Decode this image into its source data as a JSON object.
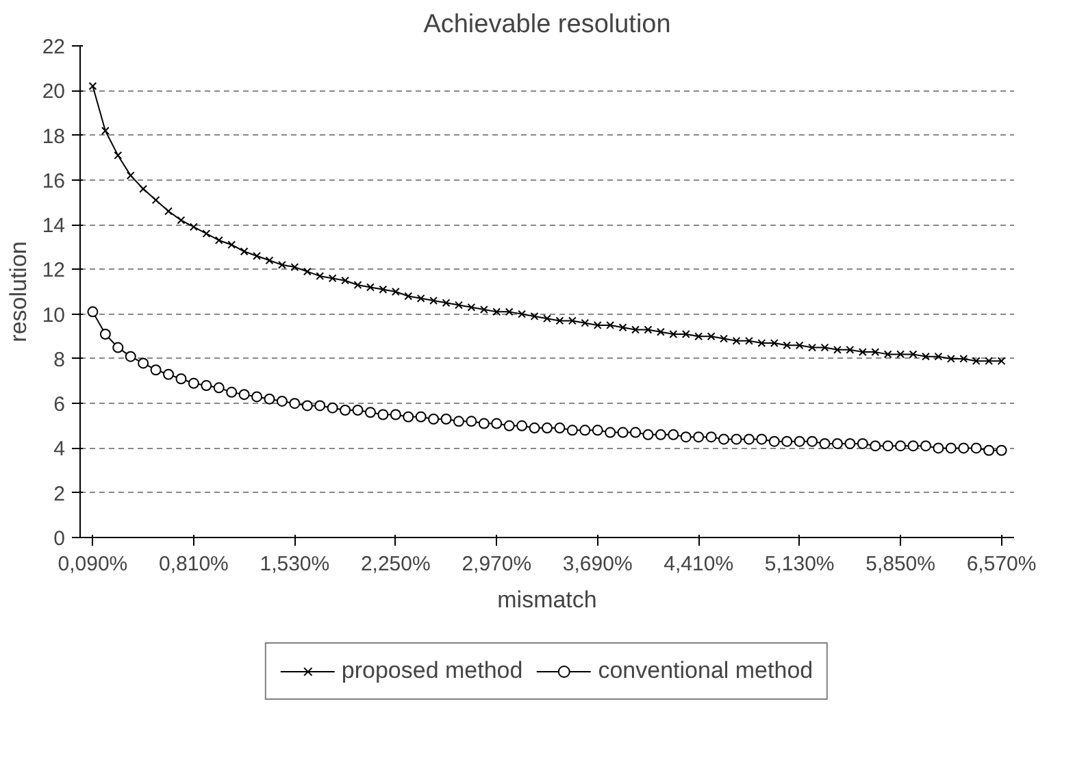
{
  "chart_data": {
    "type": "line",
    "title": "Achievable resolution",
    "xlabel": "mismatch",
    "ylabel": "resolution",
    "categories": [
      "0,090%",
      null,
      null,
      null,
      null,
      null,
      null,
      null,
      "0,810%",
      null,
      null,
      null,
      null,
      null,
      null,
      null,
      "1,530%",
      null,
      null,
      null,
      null,
      null,
      null,
      null,
      "2,250%",
      null,
      null,
      null,
      null,
      null,
      null,
      null,
      "2,970%",
      null,
      null,
      null,
      null,
      null,
      null,
      null,
      "3,690%",
      null,
      null,
      null,
      null,
      null,
      null,
      null,
      "4,410%",
      null,
      null,
      null,
      null,
      null,
      null,
      null,
      "5,130%",
      null,
      null,
      null,
      null,
      null,
      null,
      null,
      "5,850%",
      null,
      null,
      null,
      null,
      null,
      null,
      null,
      "6,570%"
    ],
    "series": [
      {
        "name": "proposed method",
        "color": "#000000",
        "marker": "cross",
        "values": [
          20.2,
          18.2,
          17.1,
          16.2,
          15.6,
          15.1,
          14.6,
          14.2,
          13.9,
          13.6,
          13.3,
          13.1,
          12.8,
          12.6,
          12.4,
          12.2,
          12.1,
          11.9,
          11.7,
          11.6,
          11.5,
          11.3,
          11.2,
          11.1,
          11.0,
          10.8,
          10.7,
          10.6,
          10.5,
          10.4,
          10.3,
          10.2,
          10.1,
          10.1,
          10.0,
          9.9,
          9.8,
          9.7,
          9.7,
          9.6,
          9.5,
          9.5,
          9.4,
          9.3,
          9.3,
          9.2,
          9.1,
          9.1,
          9.0,
          9.0,
          8.9,
          8.8,
          8.8,
          8.7,
          8.7,
          8.6,
          8.6,
          8.5,
          8.5,
          8.4,
          8.4,
          8.3,
          8.3,
          8.2,
          8.2,
          8.2,
          8.1,
          8.1,
          8.0,
          8.0,
          7.9,
          7.9,
          7.9
        ]
      },
      {
        "name": "conventional method",
        "color": "#000000",
        "marker": "circle",
        "values": [
          10.1,
          9.1,
          8.5,
          8.1,
          7.8,
          7.5,
          7.3,
          7.1,
          6.9,
          6.8,
          6.7,
          6.5,
          6.4,
          6.3,
          6.2,
          6.1,
          6.0,
          5.9,
          5.9,
          5.8,
          5.7,
          5.7,
          5.6,
          5.5,
          5.5,
          5.4,
          5.4,
          5.3,
          5.3,
          5.2,
          5.2,
          5.1,
          5.1,
          5.0,
          5.0,
          4.9,
          4.9,
          4.9,
          4.8,
          4.8,
          4.8,
          4.7,
          4.7,
          4.7,
          4.6,
          4.6,
          4.6,
          4.5,
          4.5,
          4.5,
          4.4,
          4.4,
          4.4,
          4.4,
          4.3,
          4.3,
          4.3,
          4.3,
          4.2,
          4.2,
          4.2,
          4.2,
          4.1,
          4.1,
          4.1,
          4.1,
          4.1,
          4.0,
          4.0,
          4.0,
          4.0,
          3.9,
          3.9
        ]
      }
    ],
    "ylim": [
      0,
      22
    ],
    "yticks": [
      0,
      2,
      4,
      6,
      8,
      10,
      12,
      14,
      16,
      18,
      20,
      22
    ],
    "grid": "y",
    "legend": "bottom",
    "line_style": "solid"
  }
}
